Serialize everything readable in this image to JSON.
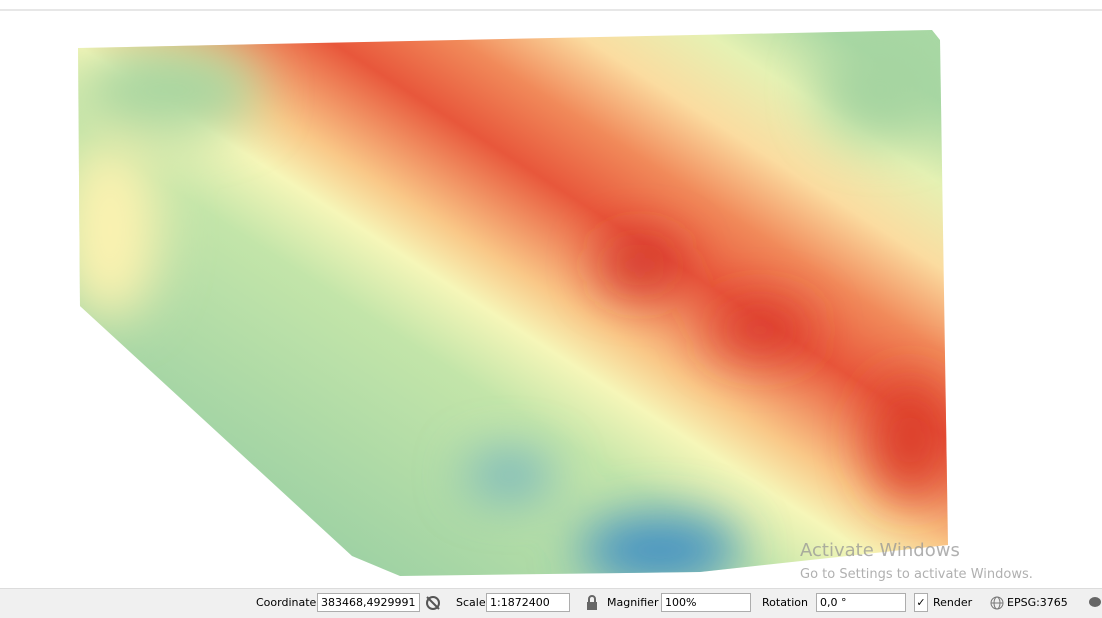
{
  "status_bar": {
    "coordinate_label": "Coordinate",
    "coordinate_value": "383468,4929991",
    "scale_label": "Scale",
    "scale_value": "1:1872400",
    "magnifier_label": "Magnifier",
    "magnifier_value": "100%",
    "rotation_label": "Rotation",
    "rotation_value": "0,0 °",
    "render_label": "Render",
    "crs": "EPSG:3765"
  },
  "watermark": {
    "title": "Activate Windows",
    "subtitle": "Go to Settings to activate Windows."
  }
}
